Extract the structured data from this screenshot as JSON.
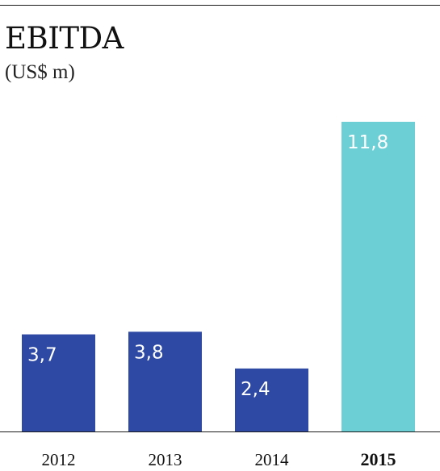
{
  "chart_data": {
    "type": "bar",
    "title": "EBITDA",
    "subtitle": "(US$ m)",
    "categories": [
      "2012",
      "2013",
      "2014",
      "2015"
    ],
    "values": [
      3.7,
      3.8,
      2.4,
      11.8
    ],
    "data_labels": [
      "3,7",
      "3,8",
      "2,4",
      "11,8"
    ],
    "highlight_index": 3,
    "colors": {
      "bar": "#2e49a4",
      "highlight": "#6dcfd6",
      "axis": "#1a1a1a"
    },
    "grid": false,
    "legend": "none",
    "ylim": [
      0,
      11.8
    ]
  }
}
